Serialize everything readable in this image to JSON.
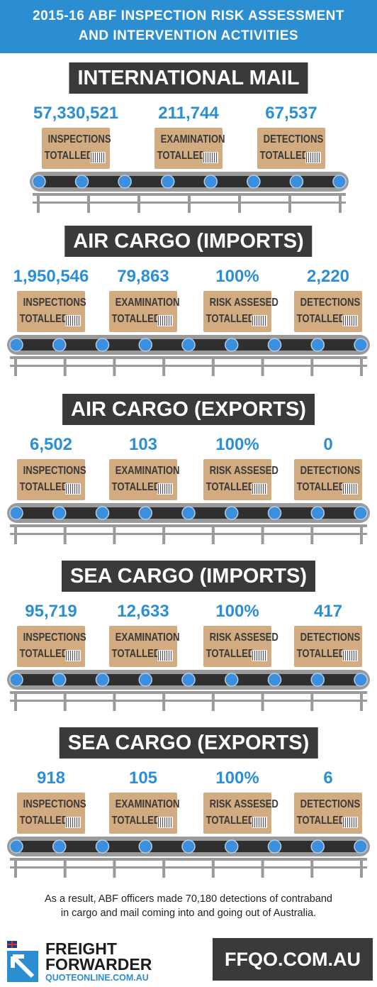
{
  "header": {
    "title_lines": [
      "2015-16 ABF INSPECTION RISK ASSESSMENT",
      "AND INTERVENTION ACTIVITIES"
    ]
  },
  "sections": [
    {
      "title": "INTERNATIONAL MAIL",
      "items": [
        {
          "value": "57,330,521",
          "label_lines": [
            "INSPECTIONS",
            "TOTALLED"
          ]
        },
        {
          "value": "211,744",
          "label_lines": [
            "EXAMINATION",
            "TOTALLED"
          ]
        },
        {
          "value": "67,537",
          "label_lines": [
            "DETECTIONS",
            "TOTALLED"
          ]
        }
      ]
    },
    {
      "title": "AIR CARGO (IMPORTS)",
      "items": [
        {
          "value": "1,950,546",
          "label_lines": [
            "INSPECTIONS",
            "TOTALLED"
          ]
        },
        {
          "value": "79,863",
          "label_lines": [
            "EXAMINATION",
            "TOTALLED"
          ]
        },
        {
          "value": "100%",
          "label_lines": [
            "RISK ASSESED",
            "TOTALLED"
          ]
        },
        {
          "value": "2,220",
          "label_lines": [
            "DETECTIONS",
            "TOTALLED"
          ]
        }
      ]
    },
    {
      "title": "AIR CARGO (EXPORTS)",
      "items": [
        {
          "value": "6,502",
          "label_lines": [
            "INSPECTIONS",
            "TOTALLED"
          ]
        },
        {
          "value": "103",
          "label_lines": [
            "EXAMINATION",
            "TOTALLED"
          ]
        },
        {
          "value": "100%",
          "label_lines": [
            "RISK ASSESED",
            "TOTALLED"
          ]
        },
        {
          "value": "0",
          "label_lines": [
            "DETECTIONS",
            "TOTALLED"
          ]
        }
      ]
    },
    {
      "title": "SEA CARGO (IMPORTS)",
      "items": [
        {
          "value": "95,719",
          "label_lines": [
            "INSPECTIONS",
            "TOTALLED"
          ]
        },
        {
          "value": "12,633",
          "label_lines": [
            "EXAMINATION",
            "TOTALLED"
          ]
        },
        {
          "value": "100%",
          "label_lines": [
            "RISK ASSESED",
            "TOTALLED"
          ]
        },
        {
          "value": "417",
          "label_lines": [
            "DETECTIONS",
            "TOTALLED"
          ]
        }
      ]
    },
    {
      "title": "SEA CARGO (EXPORTS)",
      "items": [
        {
          "value": "918",
          "label_lines": [
            "INSPECTIONS",
            "TOTALLED"
          ]
        },
        {
          "value": "105",
          "label_lines": [
            "EXAMINATION",
            "TOTALLED"
          ]
        },
        {
          "value": "100%",
          "label_lines": [
            "RISK ASSESED",
            "TOTALLED"
          ]
        },
        {
          "value": "6",
          "label_lines": [
            "DETECTIONS",
            "TOTALLED"
          ]
        }
      ]
    }
  ],
  "footer": {
    "note_lines": [
      "As a result, ABF officers made 70,180 detections of contraband",
      "in cargo and mail coming into and going out of Australia."
    ],
    "logo_lines": [
      "FREIGHT",
      "FORWARDER",
      "QUOTEONLINE.COM.AU"
    ],
    "website": "FFQO.COM.AU"
  }
}
